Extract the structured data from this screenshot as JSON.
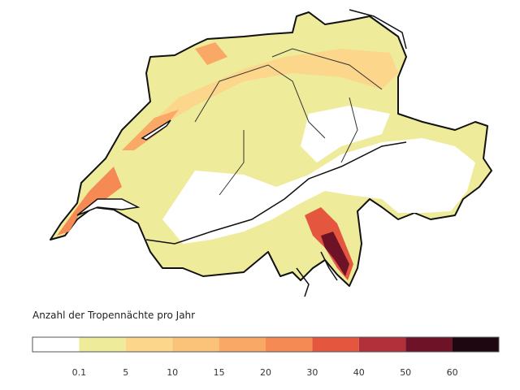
{
  "legend": {
    "title": "Anzahl der Tropennächte pro Jahr",
    "colors": [
      "#ffffff",
      "#eeeb9a",
      "#fbd68b",
      "#fbc27a",
      "#f9a866",
      "#f68a55",
      "#e4573e",
      "#b2303a",
      "#6e1327",
      "#1e0710"
    ],
    "ticks": [
      0.1,
      5,
      10,
      15,
      20,
      30,
      40,
      50,
      60
    ]
  }
}
